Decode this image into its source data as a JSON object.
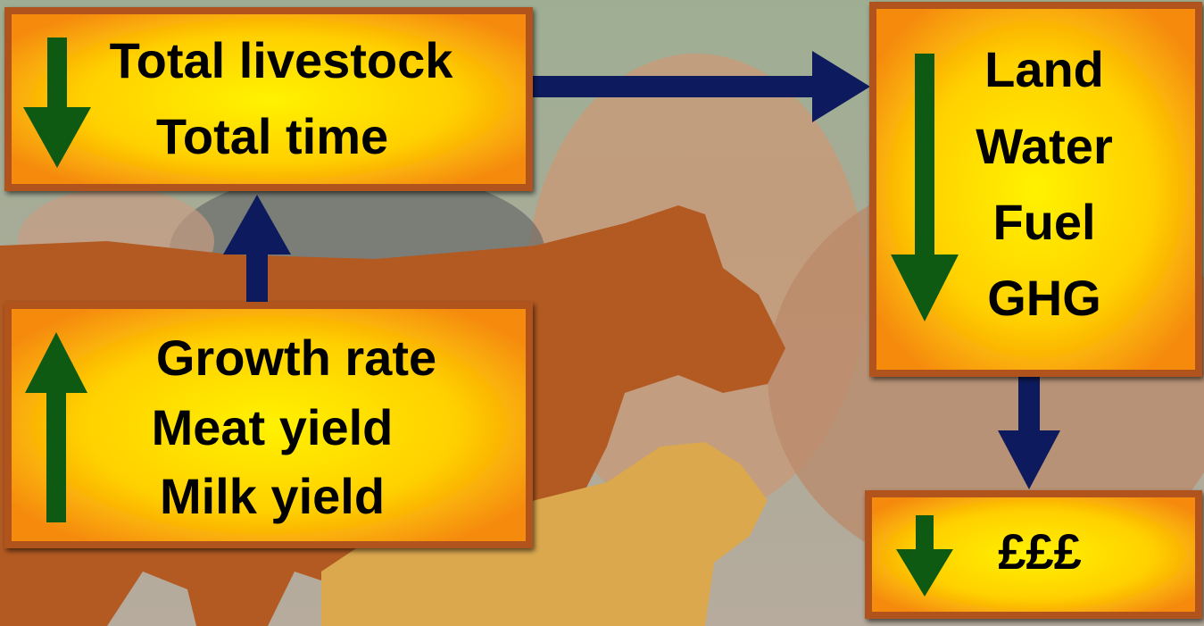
{
  "nodes": [
    {
      "lines": [
        "Total livestock",
        "Total time"
      ]
    },
    {
      "lines": [
        "Growth rate",
        "Meat yield",
        "Milk yield"
      ]
    },
    {
      "lines": [
        "Land",
        "Water",
        "Fuel",
        "GHG"
      ]
    },
    {
      "lines": [
        "£££"
      ]
    }
  ]
}
